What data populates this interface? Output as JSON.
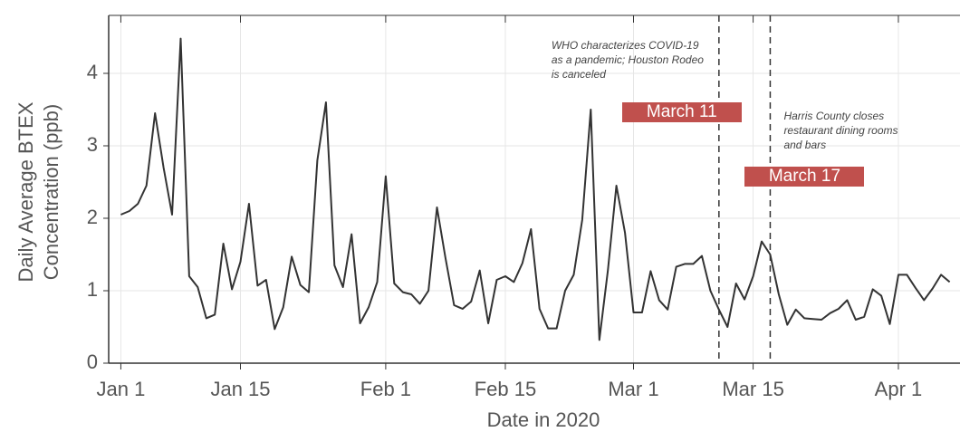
{
  "chart_data": {
    "type": "line",
    "x_label": "Date in 2020",
    "y_label": [
      "Daily Average BTEX",
      "Concentration (ppb)"
    ],
    "x": [
      "2020-01-01",
      "2020-01-02",
      "2020-01-03",
      "2020-01-04",
      "2020-01-05",
      "2020-01-06",
      "2020-01-07",
      "2020-01-08",
      "2020-01-09",
      "2020-01-10",
      "2020-01-11",
      "2020-01-12",
      "2020-01-13",
      "2020-01-14",
      "2020-01-15",
      "2020-01-16",
      "2020-01-17",
      "2020-01-18",
      "2020-01-19",
      "2020-01-20",
      "2020-01-21",
      "2020-01-22",
      "2020-01-23",
      "2020-01-24",
      "2020-01-25",
      "2020-01-26",
      "2020-01-27",
      "2020-01-28",
      "2020-01-29",
      "2020-01-30",
      "2020-01-31",
      "2020-02-01",
      "2020-02-02",
      "2020-02-03",
      "2020-02-04",
      "2020-02-05",
      "2020-02-06",
      "2020-02-07",
      "2020-02-08",
      "2020-02-09",
      "2020-02-10",
      "2020-02-11",
      "2020-02-12",
      "2020-02-13",
      "2020-02-14",
      "2020-02-15",
      "2020-02-16",
      "2020-02-17",
      "2020-02-18",
      "2020-02-19",
      "2020-02-20",
      "2020-02-21",
      "2020-02-22",
      "2020-02-23",
      "2020-02-24",
      "2020-02-25",
      "2020-02-26",
      "2020-02-27",
      "2020-02-28",
      "2020-02-29",
      "2020-03-01",
      "2020-03-02",
      "2020-03-03",
      "2020-03-04",
      "2020-03-05",
      "2020-03-06",
      "2020-03-07",
      "2020-03-08",
      "2020-03-09",
      "2020-03-10",
      "2020-03-11",
      "2020-03-12",
      "2020-03-13",
      "2020-03-14",
      "2020-03-15",
      "2020-03-16",
      "2020-03-17",
      "2020-03-18",
      "2020-03-19",
      "2020-03-20",
      "2020-03-21",
      "2020-03-22",
      "2020-03-23",
      "2020-03-24",
      "2020-03-25",
      "2020-03-26",
      "2020-03-27",
      "2020-03-28",
      "2020-03-29",
      "2020-03-30",
      "2020-03-31",
      "2020-04-01",
      "2020-04-02",
      "2020-04-03",
      "2020-04-04",
      "2020-04-05",
      "2020-04-06",
      "2020-04-07"
    ],
    "series": [
      {
        "color": "#333333",
        "values": [
          2.05,
          2.1,
          2.2,
          2.45,
          3.45,
          2.7,
          2.05,
          4.48,
          1.2,
          1.05,
          0.62,
          0.67,
          1.65,
          1.02,
          1.4,
          2.2,
          1.07,
          1.15,
          0.47,
          0.77,
          1.47,
          1.08,
          0.98,
          2.8,
          3.6,
          1.35,
          1.05,
          1.78,
          0.55,
          0.77,
          1.12,
          2.58,
          1.1,
          0.98,
          0.95,
          0.82,
          1.0,
          2.15,
          1.45,
          0.8,
          0.75,
          0.85,
          1.28,
          0.55,
          1.15,
          1.2,
          1.12,
          1.38,
          1.85,
          0.75,
          0.48,
          0.48,
          1.0,
          1.22,
          1.98,
          3.5,
          0.32,
          1.28,
          2.45,
          1.8,
          0.7,
          0.7,
          1.27,
          0.87,
          0.74,
          1.33,
          1.37,
          1.37,
          1.48,
          1.0,
          0.74,
          0.5,
          1.1,
          0.88,
          1.2,
          1.68,
          1.5,
          0.95,
          0.53,
          0.74,
          0.62,
          0.61,
          0.6,
          0.69,
          0.75,
          0.87,
          0.6,
          0.64,
          1.02,
          0.93,
          0.54,
          1.22,
          1.22,
          1.04,
          0.87,
          1.03,
          1.22,
          1.12
        ]
      }
    ],
    "xlim": [
      "2019-12-31",
      "2020-04-08"
    ],
    "xticks": [
      {
        "value": "2020-01-01",
        "label": "Jan 1"
      },
      {
        "value": "2020-01-15",
        "label": "Jan 15"
      },
      {
        "value": "2020-02-01",
        "label": "Feb 1"
      },
      {
        "value": "2020-02-15",
        "label": "Feb 15"
      },
      {
        "value": "2020-03-01",
        "label": "Mar 1"
      },
      {
        "value": "2020-03-15",
        "label": "Mar 15"
      },
      {
        "value": "2020-04-01",
        "label": "Apr 1"
      }
    ],
    "ylim": [
      0,
      4.8
    ],
    "yticks": [
      0,
      1,
      2,
      3,
      4
    ],
    "grid": true,
    "events": [
      {
        "date": "2020-03-11",
        "label": "March 11",
        "note": "WHO characterizes COVID-19 as a pandemic; Houston Rodeo is canceled",
        "color": "#c0504d"
      },
      {
        "date": "2020-03-17",
        "label": "March 17",
        "note": "Harris County closes restaurant dining rooms and bars",
        "color": "#c0504d"
      }
    ]
  }
}
